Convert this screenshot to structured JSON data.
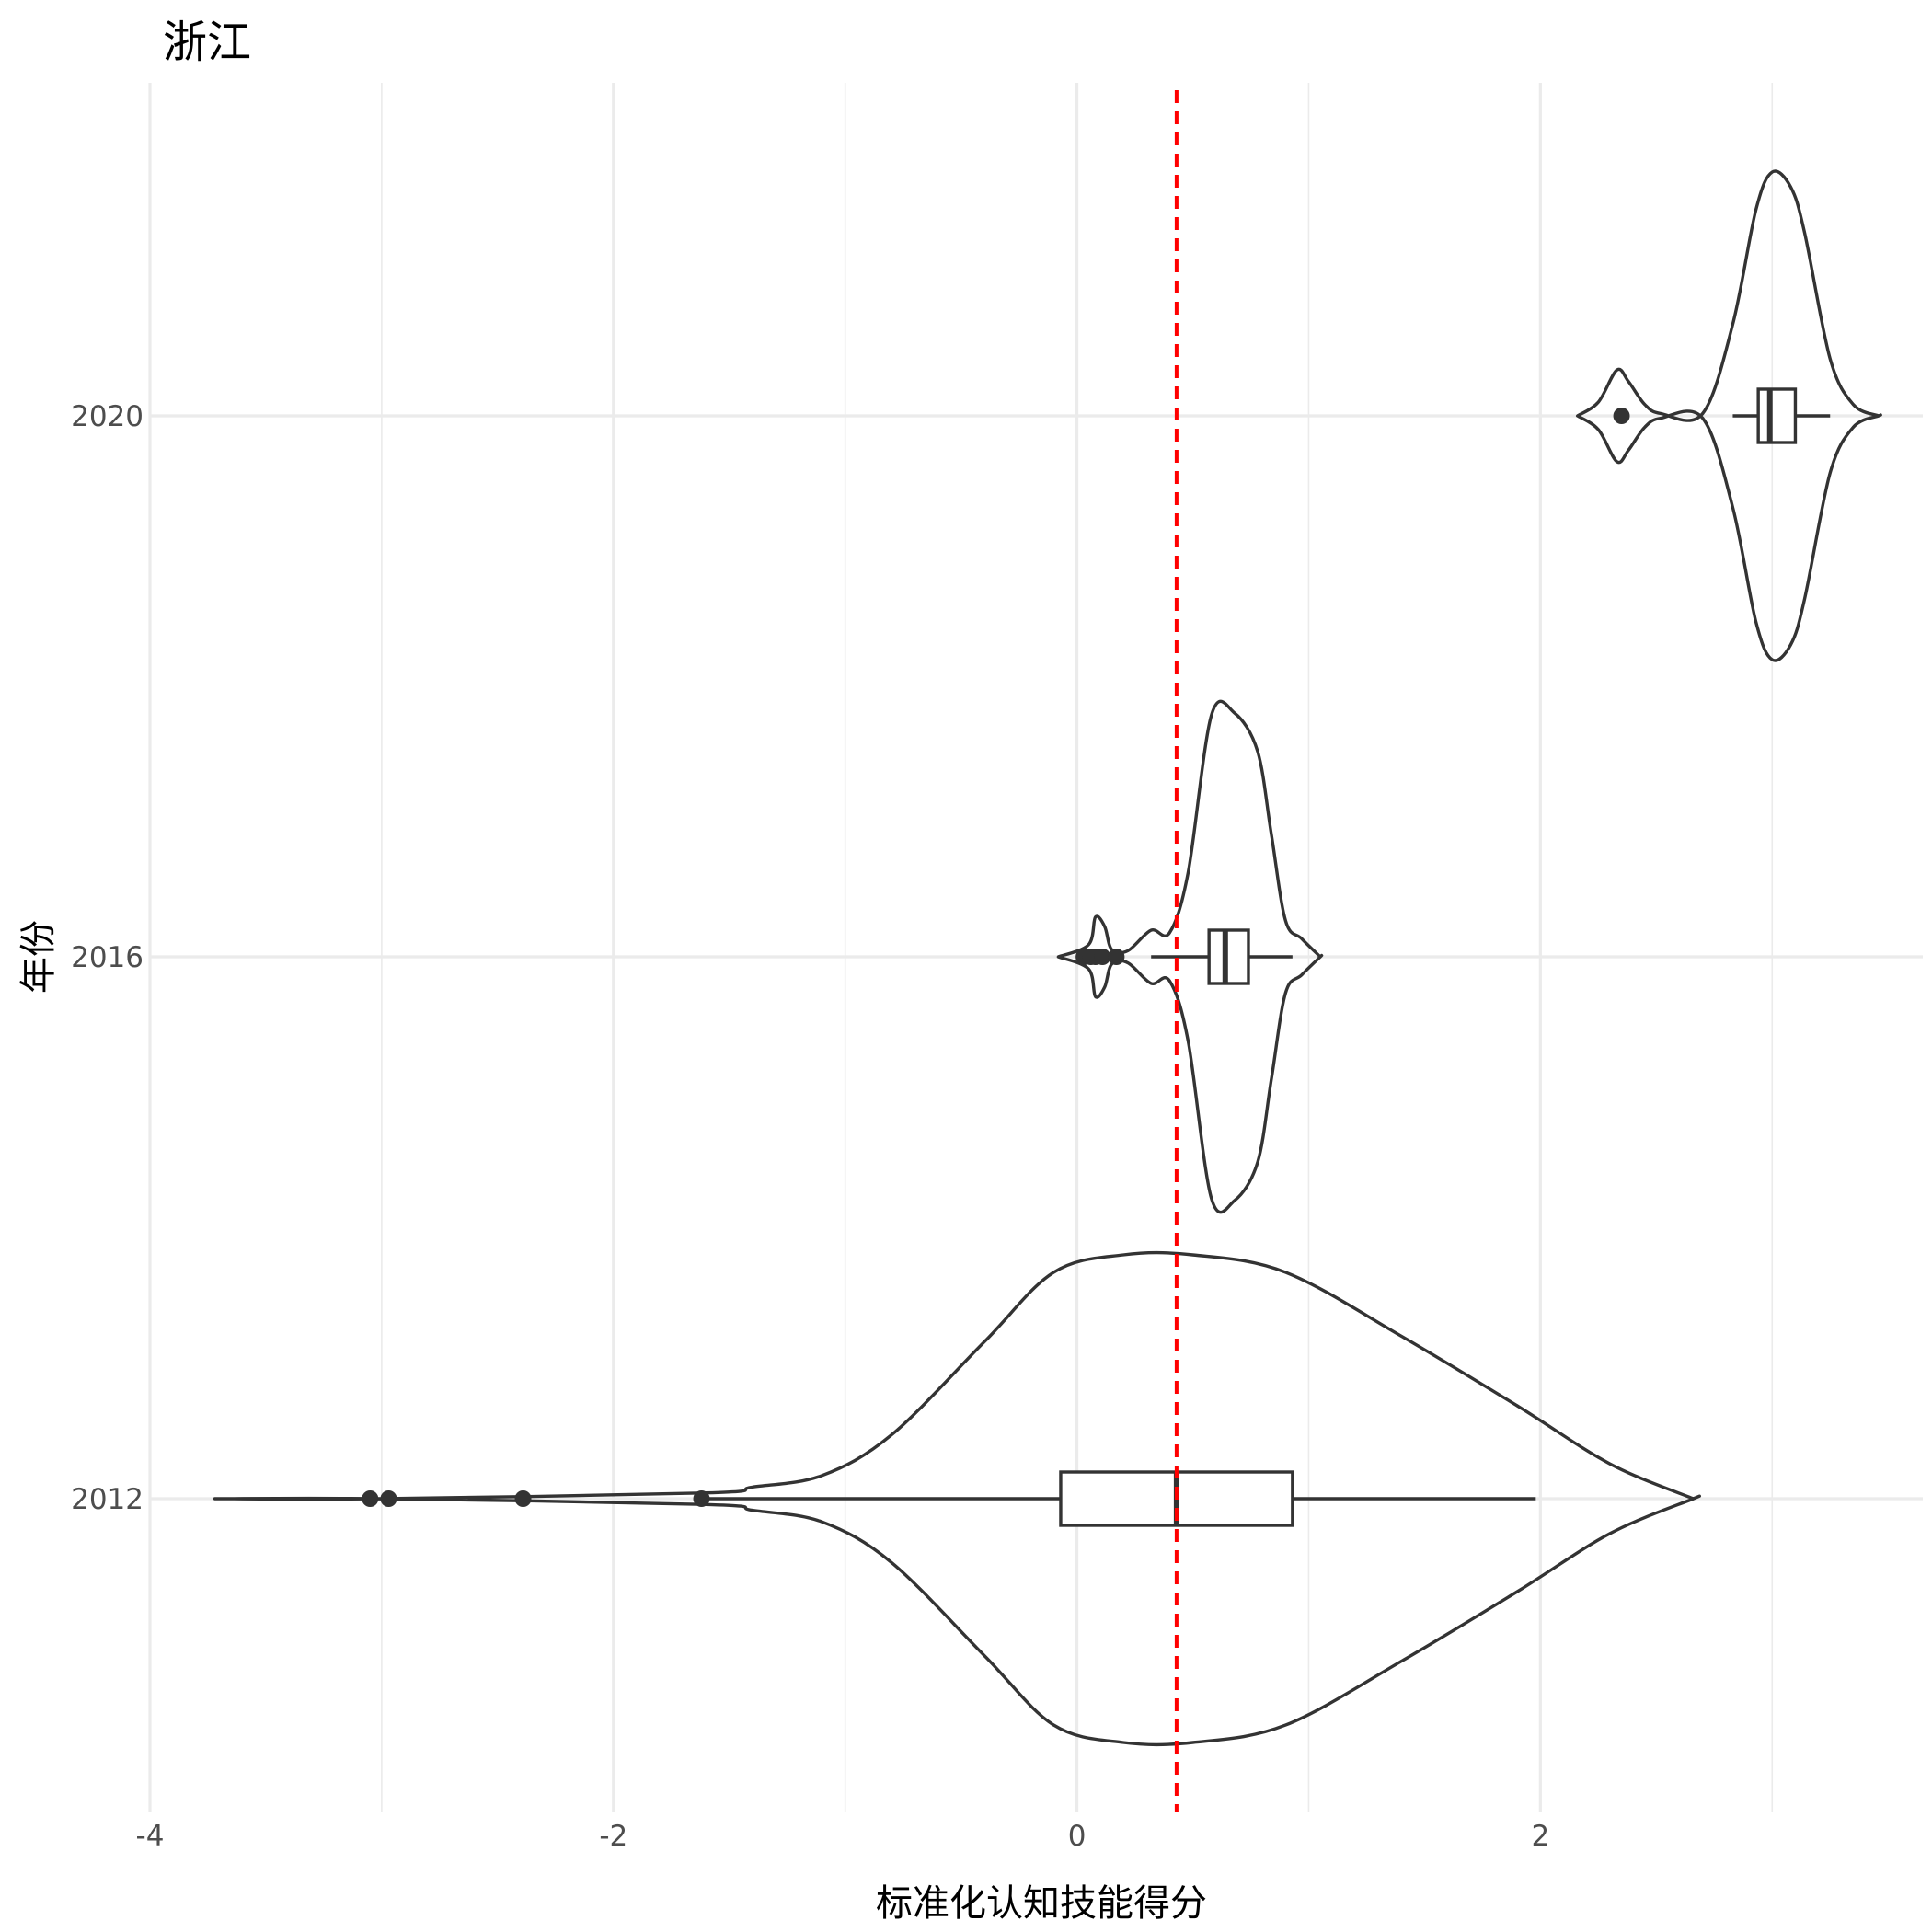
{
  "chart_data": {
    "type": "violin",
    "orientation": "horizontal",
    "title": "浙江",
    "xlabel": "标准化认知技能得分",
    "ylabel": "年份",
    "xlim": [
      -4.0,
      3.65
    ],
    "x_ticks": [
      -4,
      -2,
      0,
      2
    ],
    "x_tick_labels": [
      "-4",
      "-2",
      "0",
      "2"
    ],
    "categories": [
      "2012",
      "2016",
      "2020"
    ],
    "reference_line": {
      "x": 0.43,
      "style": "dashed",
      "color": "#ff0000"
    },
    "grid": true,
    "legend": "none",
    "series": [
      {
        "category": "2012",
        "violin": {
          "min": -3.72,
          "max": 2.66,
          "density": [
            [
              -3.72,
              0.0
            ],
            [
              -3.0,
              0.0
            ],
            [
              -1.6,
              0.01
            ],
            [
              -1.4,
              0.02
            ],
            [
              -1.1,
              0.04
            ],
            [
              -0.8,
              0.11
            ],
            [
              -0.4,
              0.27
            ],
            [
              -0.1,
              0.39
            ],
            [
              0.2,
              0.42
            ],
            [
              0.5,
              0.42
            ],
            [
              0.9,
              0.39
            ],
            [
              1.4,
              0.28
            ],
            [
              1.9,
              0.16
            ],
            [
              2.3,
              0.06
            ],
            [
              2.66,
              0.0
            ]
          ]
        },
        "box": {
          "whisker_low": -1.6,
          "q1": -0.07,
          "median": 0.43,
          "q3": 0.93,
          "whisker_high": 1.98
        },
        "outliers": [
          -3.05,
          -2.97,
          -2.39,
          -1.62
        ]
      },
      {
        "category": "2016",
        "violin": {
          "min": -0.08,
          "max": 1.05,
          "density": [
            [
              -0.08,
              0.0
            ],
            [
              0.05,
              0.1
            ],
            [
              0.08,
              0.33
            ],
            [
              0.12,
              0.25
            ],
            [
              0.15,
              0.06
            ],
            [
              0.22,
              0.05
            ],
            [
              0.32,
              0.22
            ],
            [
              0.4,
              0.2
            ],
            [
              0.48,
              0.7
            ],
            [
              0.58,
              2.0
            ],
            [
              0.68,
              2.02
            ],
            [
              0.78,
              1.7
            ],
            [
              0.84,
              1.0
            ],
            [
              0.9,
              0.3
            ],
            [
              0.97,
              0.15
            ],
            [
              1.05,
              0.0
            ]
          ]
        },
        "box": {
          "whisker_low": 0.32,
          "q1": 0.57,
          "median": 0.64,
          "q3": 0.74,
          "whisker_high": 0.93
        },
        "outliers": [
          0.03,
          0.06,
          0.08,
          0.11,
          0.17
        ]
      },
      {
        "category": "2020",
        "violin": {
          "min": 2.16,
          "max": 3.46,
          "density": [
            [
              2.16,
              0.0
            ],
            [
              2.25,
              0.12
            ],
            [
              2.33,
              0.4
            ],
            [
              2.38,
              0.3
            ],
            [
              2.45,
              0.1
            ],
            [
              2.52,
              0.02
            ],
            [
              2.7,
              0.02
            ],
            [
              2.83,
              0.8
            ],
            [
              2.93,
              1.8
            ],
            [
              3.0,
              2.13
            ],
            [
              3.08,
              2.0
            ],
            [
              3.14,
              1.6
            ],
            [
              3.25,
              0.5
            ],
            [
              3.35,
              0.1
            ],
            [
              3.46,
              0.0
            ]
          ]
        },
        "box": {
          "whisker_low": 2.83,
          "q1": 2.94,
          "median": 2.99,
          "q3": 3.1,
          "whisker_high": 3.25
        },
        "outliers": [
          2.35
        ]
      }
    ]
  }
}
